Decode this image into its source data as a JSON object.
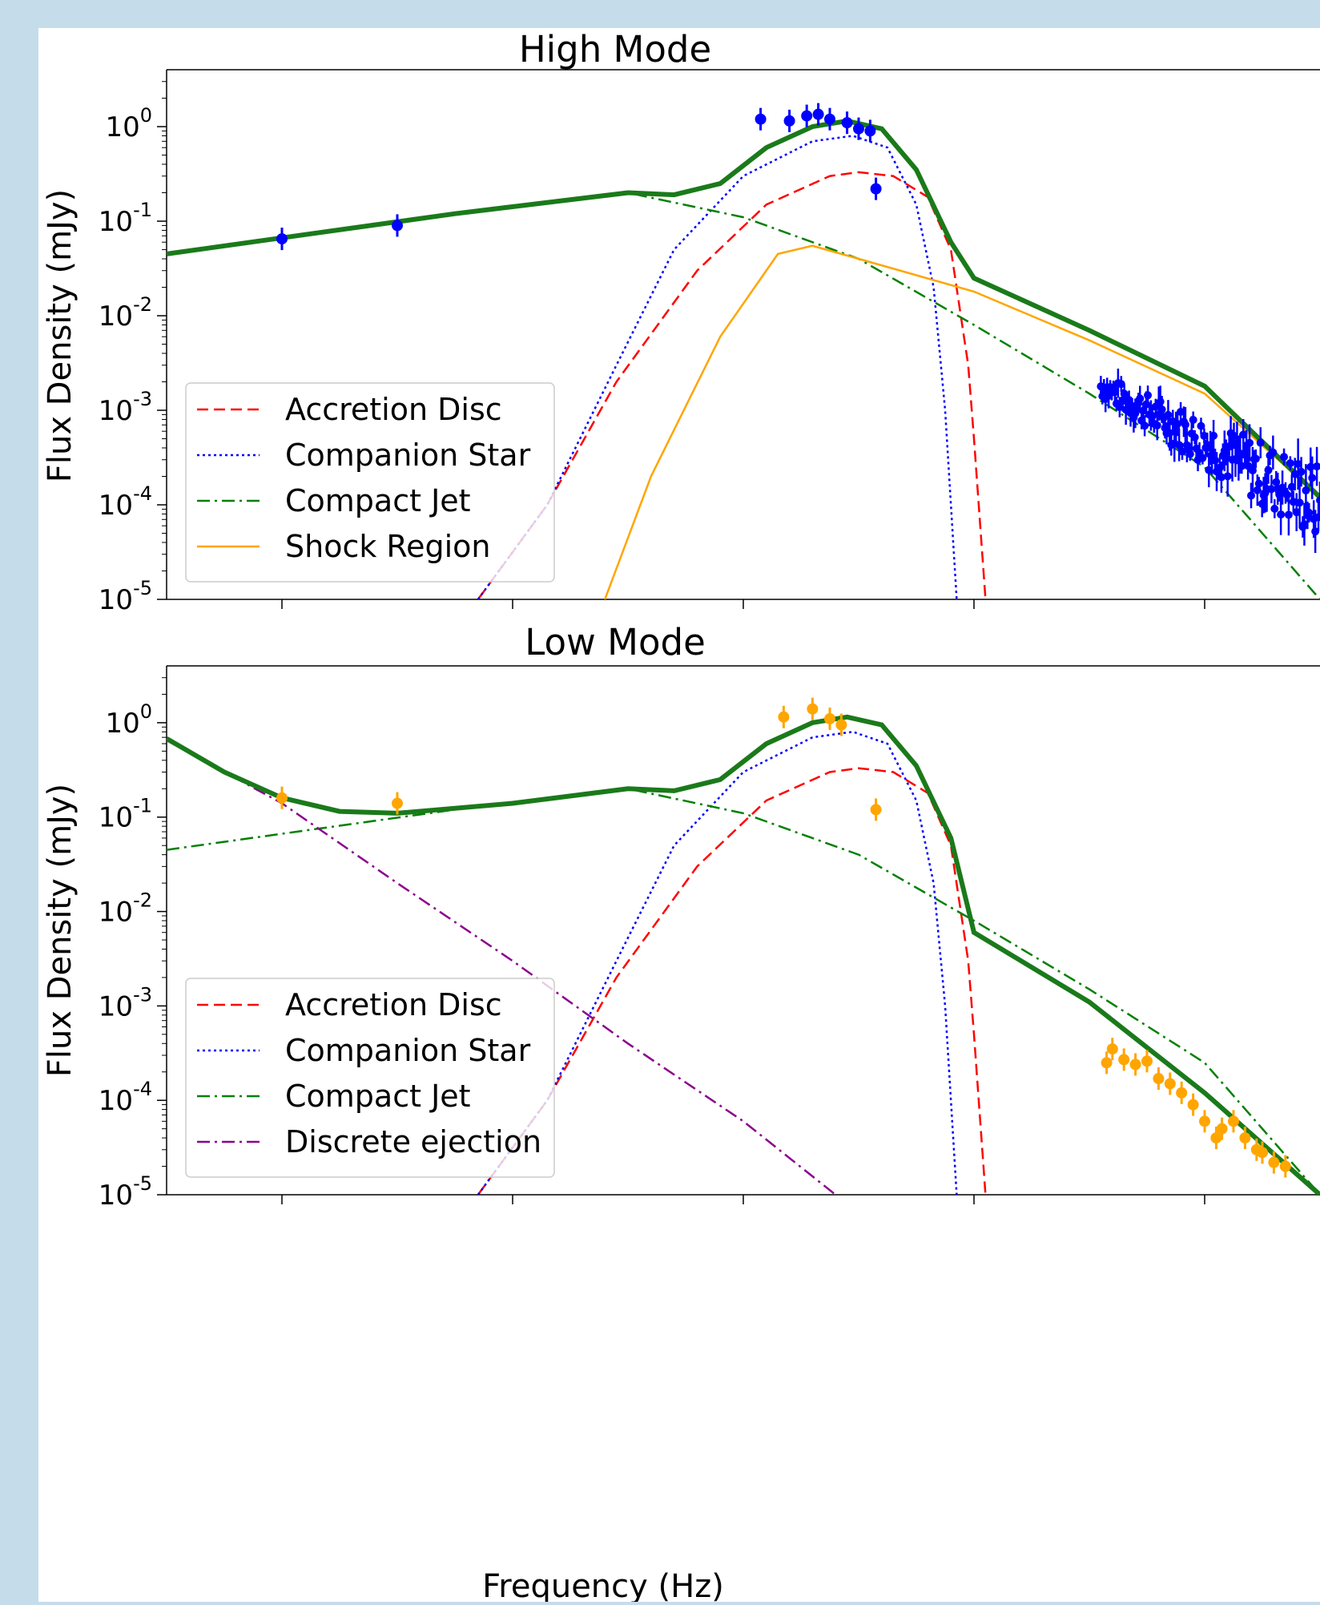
{
  "chart_data": [
    {
      "type": "line",
      "title": "High Mode",
      "xlabel": "",
      "ylabel": "Flux Density (mJy)",
      "yscale": "log",
      "ylim": [
        1e-05,
        4
      ],
      "ytick_labels": [
        "10^0",
        "10^-1",
        "10^-2",
        "10^-3",
        "10^-4",
        "10^-5"
      ],
      "xtick_labels": [],
      "legend": {
        "location": "lower-left",
        "entries": [
          "Accretion Disc",
          "Companion Star",
          "Compact Jet",
          "Shock Region"
        ]
      },
      "colors": {
        "disc": "#ff0000",
        "star": "#0000ff",
        "jet": "#008000",
        "shock": "#ffa500",
        "total": "#1a7a1a",
        "points": "#0000ff"
      },
      "series": [
        {
          "name": "Accretion Disc",
          "style": "dashed",
          "color": "#ff0000",
          "points": [
            [
              0.27,
              1e-05
            ],
            [
              0.33,
              0.0001
            ],
            [
              0.39,
              0.002
            ],
            [
              0.46,
              0.03
            ],
            [
              0.52,
              0.15
            ],
            [
              0.575,
              0.3
            ],
            [
              0.6,
              0.33
            ],
            [
              0.63,
              0.3
            ],
            [
              0.66,
              0.18
            ],
            [
              0.68,
              0.05
            ],
            [
              0.695,
              0.003
            ],
            [
              0.7,
              0.0005
            ],
            [
              0.71,
              1e-05
            ]
          ]
        },
        {
          "name": "Companion Star",
          "style": "dotted",
          "color": "#0000ff",
          "points": [
            [
              0.27,
              1e-05
            ],
            [
              0.33,
              0.0001
            ],
            [
              0.39,
              0.003
            ],
            [
              0.44,
              0.05
            ],
            [
              0.5,
              0.3
            ],
            [
              0.56,
              0.7
            ],
            [
              0.595,
              0.8
            ],
            [
              0.625,
              0.6
            ],
            [
              0.65,
              0.15
            ],
            [
              0.665,
              0.02
            ],
            [
              0.675,
              0.001
            ],
            [
              0.68,
              0.0001
            ],
            [
              0.685,
              1e-05
            ]
          ]
        },
        {
          "name": "Compact Jet",
          "style": "dashdot",
          "color": "#008000",
          "points": [
            [
              0.0,
              0.045
            ],
            [
              0.25,
              0.12
            ],
            [
              0.4,
              0.2
            ],
            [
              0.5,
              0.11
            ],
            [
              0.6,
              0.04
            ],
            [
              0.7,
              0.008
            ],
            [
              0.8,
              0.0015
            ],
            [
              0.9,
              0.00025
            ],
            [
              1.0,
              1e-05
            ]
          ]
        },
        {
          "name": "Shock Region",
          "style": "solid",
          "color": "#ffa500",
          "points": [
            [
              0.38,
              1e-05
            ],
            [
              0.42,
              0.0002
            ],
            [
              0.48,
              0.006
            ],
            [
              0.53,
              0.045
            ],
            [
              0.56,
              0.055
            ],
            [
              0.6,
              0.04
            ],
            [
              0.7,
              0.018
            ],
            [
              0.8,
              0.0055
            ],
            [
              0.9,
              0.0015
            ],
            [
              1.0,
              0.00012
            ]
          ]
        },
        {
          "name": "",
          "style": "total",
          "color": "#1a7a1a",
          "points": [
            [
              0.0,
              0.045
            ],
            [
              0.25,
              0.12
            ],
            [
              0.4,
              0.2
            ],
            [
              0.44,
              0.19
            ],
            [
              0.48,
              0.25
            ],
            [
              0.52,
              0.6
            ],
            [
              0.56,
              1.0
            ],
            [
              0.59,
              1.15
            ],
            [
              0.62,
              0.95
            ],
            [
              0.65,
              0.35
            ],
            [
              0.68,
              0.06
            ],
            [
              0.7,
              0.025
            ],
            [
              0.8,
              0.007
            ],
            [
              0.9,
              0.0018
            ],
            [
              1.0,
              0.00012
            ]
          ]
        }
      ],
      "data_points": [
        [
          0.1,
          0.065
        ],
        [
          0.2,
          0.09
        ],
        [
          0.515,
          1.2
        ],
        [
          0.54,
          1.15
        ],
        [
          0.555,
          1.3
        ],
        [
          0.565,
          1.35
        ],
        [
          0.575,
          1.2
        ],
        [
          0.59,
          1.1
        ],
        [
          0.6,
          0.95
        ],
        [
          0.61,
          0.9
        ],
        [
          0.615,
          0.22
        ]
      ],
      "data_noise": {
        "x_range": [
          0.81,
          1.0
        ],
        "y_start": 0.0018,
        "y_end": 0.0001
      }
    },
    {
      "type": "line",
      "title": "Low Mode",
      "xlabel": "Frequency (Hz)",
      "ylabel": "Flux Density (mJy)",
      "yscale": "log",
      "ylim": [
        1e-05,
        4
      ],
      "ytick_labels": [
        "10^0",
        "10^-1",
        "10^-2",
        "10^-3",
        "10^-4",
        "10^-5"
      ],
      "xtick_labels": [],
      "legend": {
        "location": "lower-left",
        "entries": [
          "Accretion Disc",
          "Companion Star",
          "Compact Jet",
          "Discrete ejection"
        ]
      },
      "colors": {
        "disc": "#ff0000",
        "star": "#0000ff",
        "jet": "#008000",
        "ejection": "#8b008b",
        "total": "#1a7a1a",
        "points": "#ffa500"
      },
      "series": [
        {
          "name": "Accretion Disc",
          "style": "dashed",
          "color": "#ff0000",
          "points": [
            [
              0.27,
              1e-05
            ],
            [
              0.33,
              0.0001
            ],
            [
              0.39,
              0.002
            ],
            [
              0.46,
              0.03
            ],
            [
              0.52,
              0.15
            ],
            [
              0.575,
              0.3
            ],
            [
              0.6,
              0.33
            ],
            [
              0.63,
              0.3
            ],
            [
              0.66,
              0.18
            ],
            [
              0.68,
              0.05
            ],
            [
              0.695,
              0.003
            ],
            [
              0.7,
              0.0005
            ],
            [
              0.71,
              1e-05
            ]
          ]
        },
        {
          "name": "Companion Star",
          "style": "dotted",
          "color": "#0000ff",
          "points": [
            [
              0.27,
              1e-05
            ],
            [
              0.33,
              0.0001
            ],
            [
              0.39,
              0.003
            ],
            [
              0.44,
              0.05
            ],
            [
              0.5,
              0.3
            ],
            [
              0.56,
              0.7
            ],
            [
              0.595,
              0.8
            ],
            [
              0.625,
              0.6
            ],
            [
              0.65,
              0.15
            ],
            [
              0.665,
              0.02
            ],
            [
              0.675,
              0.001
            ],
            [
              0.68,
              0.0001
            ],
            [
              0.685,
              1e-05
            ]
          ]
        },
        {
          "name": "Compact Jet",
          "style": "dashdot",
          "color": "#008000",
          "points": [
            [
              0.0,
              0.045
            ],
            [
              0.25,
              0.12
            ],
            [
              0.4,
              0.2
            ],
            [
              0.5,
              0.11
            ],
            [
              0.6,
              0.04
            ],
            [
              0.7,
              0.008
            ],
            [
              0.8,
              0.0015
            ],
            [
              0.9,
              0.00025
            ],
            [
              1.0,
              1e-05
            ]
          ]
        },
        {
          "name": "Discrete ejection",
          "style": "dashdot",
          "color": "#8b008b",
          "points": [
            [
              0.0,
              0.65
            ],
            [
              0.1,
              0.14
            ],
            [
              0.2,
              0.02
            ],
            [
              0.3,
              0.003
            ],
            [
              0.4,
              0.0004
            ],
            [
              0.5,
              6e-05
            ],
            [
              0.58,
              1e-05
            ]
          ]
        },
        {
          "name": "",
          "style": "total",
          "color": "#1a7a1a",
          "points": [
            [
              0.0,
              0.68
            ],
            [
              0.05,
              0.3
            ],
            [
              0.1,
              0.16
            ],
            [
              0.15,
              0.115
            ],
            [
              0.2,
              0.11
            ],
            [
              0.3,
              0.14
            ],
            [
              0.4,
              0.2
            ],
            [
              0.44,
              0.19
            ],
            [
              0.48,
              0.25
            ],
            [
              0.52,
              0.6
            ],
            [
              0.56,
              1.0
            ],
            [
              0.59,
              1.15
            ],
            [
              0.62,
              0.95
            ],
            [
              0.65,
              0.35
            ],
            [
              0.68,
              0.06
            ],
            [
              0.7,
              0.006
            ],
            [
              0.8,
              0.0011
            ],
            [
              0.9,
              0.00012
            ],
            [
              1.0,
              1e-05
            ]
          ]
        }
      ],
      "data_points": [
        [
          0.1,
          0.16
        ],
        [
          0.2,
          0.14
        ],
        [
          0.535,
          1.15
        ],
        [
          0.56,
          1.4
        ],
        [
          0.575,
          1.1
        ],
        [
          0.585,
          0.95
        ],
        [
          0.615,
          0.12
        ],
        [
          0.815,
          0.00025
        ],
        [
          0.82,
          0.00035
        ],
        [
          0.83,
          0.00027
        ],
        [
          0.84,
          0.00024
        ],
        [
          0.85,
          0.00026
        ],
        [
          0.86,
          0.00017
        ],
        [
          0.87,
          0.00015
        ],
        [
          0.88,
          0.00012
        ],
        [
          0.89,
          9e-05
        ],
        [
          0.9,
          6e-05
        ],
        [
          0.91,
          4e-05
        ],
        [
          0.915,
          5e-05
        ],
        [
          0.925,
          6e-05
        ],
        [
          0.935,
          4e-05
        ],
        [
          0.945,
          3e-05
        ],
        [
          0.95,
          2.8e-05
        ],
        [
          0.96,
          2.2e-05
        ],
        [
          0.97,
          2e-05
        ]
      ]
    }
  ]
}
